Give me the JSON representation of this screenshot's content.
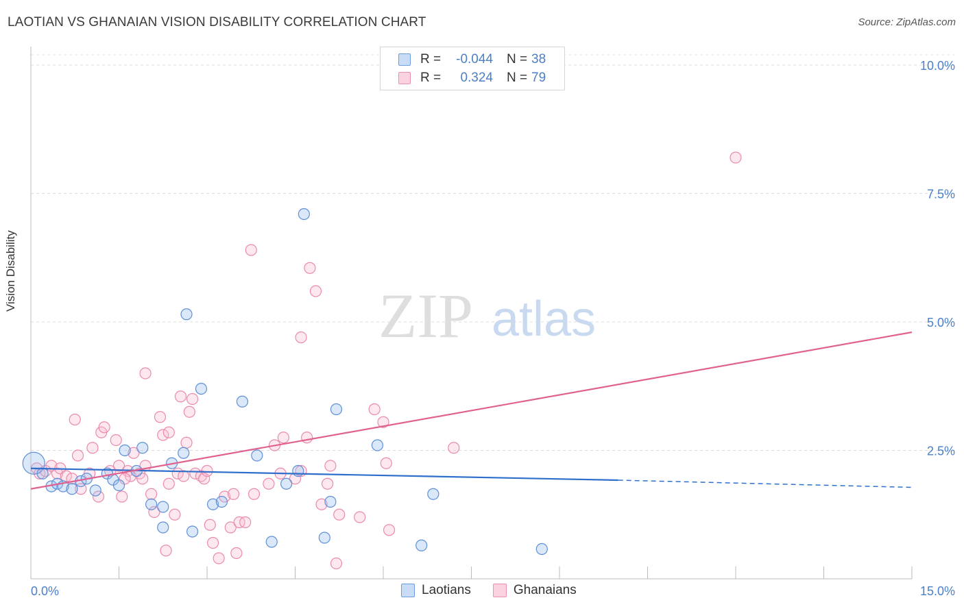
{
  "title": "LAOTIAN VS GHANAIAN VISION DISABILITY CORRELATION CHART",
  "source": "Source: ZipAtlas.com",
  "watermark": {
    "part1": "ZIP",
    "part2": "atlas"
  },
  "colors": {
    "laotians": "#6b9de0",
    "ghanaians": "#ee8fb0",
    "laotians_line": "#2f6fcc",
    "ghanaians_line": "#e0608e",
    "tick_text": "#4a7fc8"
  },
  "legend": {
    "rows": [
      {
        "r_label": "R =",
        "r_value": "-0.044",
        "n_label": "N =",
        "n_value": "38"
      },
      {
        "r_label": "R =",
        "r_value": "0.324",
        "n_label": "N =",
        "n_value": "79"
      }
    ]
  },
  "bottom_legend": {
    "laotians": "Laotians",
    "ghanaians": "Ghanaians"
  },
  "chart_data": {
    "type": "scatter",
    "title": "LAOTIAN VS GHANAIAN VISION DISABILITY CORRELATION CHART",
    "xlabel": "",
    "ylabel": "Vision Disability",
    "xlim": [
      0,
      15
    ],
    "ylim": [
      0,
      10.2
    ],
    "y_ticks": [
      2.5,
      5.0,
      7.5,
      10.0
    ],
    "y_tick_labels": [
      "2.5%",
      "5.0%",
      "7.5%",
      "10.0%"
    ],
    "x_tick_labels": [
      "0.0%",
      "15.0%"
    ],
    "grid": true,
    "legend_position": "top-center",
    "series": [
      {
        "name": "Laotians",
        "points": [
          [
            0.05,
            2.25
          ],
          [
            0.2,
            2.05
          ],
          [
            0.35,
            1.8
          ],
          [
            0.45,
            1.85
          ],
          [
            0.55,
            1.8
          ],
          [
            0.7,
            1.75
          ],
          [
            0.85,
            1.9
          ],
          [
            0.95,
            1.95
          ],
          [
            1.1,
            1.72
          ],
          [
            1.3,
            2.05
          ],
          [
            1.4,
            1.93
          ],
          [
            1.5,
            1.82
          ],
          [
            1.6,
            2.5
          ],
          [
            1.8,
            2.1
          ],
          [
            1.9,
            2.55
          ],
          [
            2.05,
            1.45
          ],
          [
            2.25,
            1.4
          ],
          [
            2.4,
            2.25
          ],
          [
            2.6,
            2.45
          ],
          [
            2.65,
            5.15
          ],
          [
            2.9,
            3.7
          ],
          [
            3.1,
            1.45
          ],
          [
            3.25,
            1.5
          ],
          [
            3.6,
            3.45
          ],
          [
            3.85,
            2.4
          ],
          [
            4.1,
            0.72
          ],
          [
            4.35,
            1.85
          ],
          [
            4.55,
            2.1
          ],
          [
            4.65,
            7.1
          ],
          [
            5.0,
            0.8
          ],
          [
            5.1,
            1.5
          ],
          [
            5.2,
            3.3
          ],
          [
            5.9,
            2.6
          ],
          [
            6.65,
            0.65
          ],
          [
            6.85,
            1.65
          ],
          [
            8.7,
            0.58
          ],
          [
            2.75,
            0.92
          ],
          [
            2.25,
            1.0
          ]
        ],
        "trend": {
          "x": [
            0,
            10.0
          ],
          "y": [
            2.15,
            1.92
          ],
          "dashed_to": [
            15,
            1.78
          ]
        }
      },
      {
        "name": "Ghanaians",
        "points": [
          [
            0.1,
            2.15
          ],
          [
            0.15,
            2.05
          ],
          [
            0.25,
            2.1
          ],
          [
            0.35,
            2.2
          ],
          [
            0.45,
            2.05
          ],
          [
            0.5,
            2.15
          ],
          [
            0.6,
            2.0
          ],
          [
            0.7,
            1.95
          ],
          [
            0.8,
            2.4
          ],
          [
            0.85,
            1.75
          ],
          [
            0.75,
            3.1
          ],
          [
            1.0,
            2.05
          ],
          [
            1.05,
            2.55
          ],
          [
            1.15,
            1.6
          ],
          [
            1.2,
            2.85
          ],
          [
            1.25,
            2.95
          ],
          [
            1.35,
            2.1
          ],
          [
            1.45,
            2.7
          ],
          [
            1.5,
            2.2
          ],
          [
            1.55,
            1.6
          ],
          [
            1.65,
            2.1
          ],
          [
            1.7,
            2.0
          ],
          [
            1.75,
            2.45
          ],
          [
            1.85,
            2.05
          ],
          [
            1.9,
            1.95
          ],
          [
            1.95,
            2.2
          ],
          [
            1.95,
            4.0
          ],
          [
            2.05,
            1.65
          ],
          [
            2.1,
            1.3
          ],
          [
            2.2,
            3.15
          ],
          [
            2.25,
            2.8
          ],
          [
            2.3,
            0.55
          ],
          [
            2.35,
            2.85
          ],
          [
            2.45,
            1.25
          ],
          [
            2.5,
            2.05
          ],
          [
            2.55,
            3.55
          ],
          [
            2.6,
            2.0
          ],
          [
            2.65,
            2.65
          ],
          [
            2.7,
            3.25
          ],
          [
            2.75,
            3.5
          ],
          [
            2.8,
            2.05
          ],
          [
            2.9,
            2.0
          ],
          [
            2.95,
            1.95
          ],
          [
            3.0,
            2.1
          ],
          [
            3.05,
            1.05
          ],
          [
            3.1,
            0.7
          ],
          [
            3.2,
            0.4
          ],
          [
            3.3,
            1.6
          ],
          [
            3.4,
            1.0
          ],
          [
            3.45,
            1.65
          ],
          [
            3.5,
            0.5
          ],
          [
            3.55,
            1.1
          ],
          [
            3.65,
            1.1
          ],
          [
            3.75,
            6.4
          ],
          [
            3.8,
            1.65
          ],
          [
            4.05,
            1.85
          ],
          [
            4.15,
            2.6
          ],
          [
            4.25,
            2.05
          ],
          [
            4.3,
            2.75
          ],
          [
            4.5,
            1.95
          ],
          [
            4.6,
            2.1
          ],
          [
            4.6,
            4.7
          ],
          [
            4.7,
            2.75
          ],
          [
            4.75,
            6.05
          ],
          [
            4.85,
            5.6
          ],
          [
            4.95,
            1.45
          ],
          [
            5.05,
            1.85
          ],
          [
            5.1,
            2.2
          ],
          [
            5.2,
            0.3
          ],
          [
            5.25,
            1.25
          ],
          [
            5.6,
            1.2
          ],
          [
            5.85,
            3.3
          ],
          [
            6.0,
            3.05
          ],
          [
            6.05,
            2.25
          ],
          [
            6.1,
            0.95
          ],
          [
            7.2,
            2.55
          ],
          [
            12.0,
            8.2
          ],
          [
            2.35,
            1.85
          ],
          [
            1.6,
            1.95
          ]
        ],
        "trend": {
          "x": [
            0,
            15
          ],
          "y": [
            1.75,
            4.8
          ]
        }
      }
    ]
  }
}
